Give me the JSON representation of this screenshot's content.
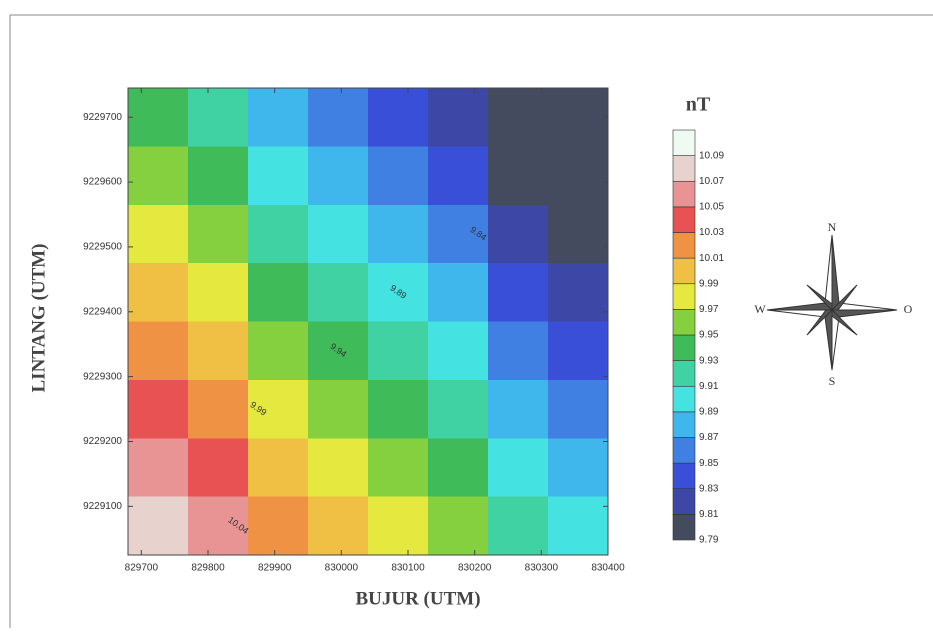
{
  "chart_data": {
    "type": "contour",
    "x_label": "BUJUR (UTM)",
    "y_label": "LINTANG (UTM)",
    "colorbar_title": "nT",
    "xlim": [
      829680,
      830400
    ],
    "ylim": [
      9229025,
      9229745
    ],
    "xticks": [
      829700,
      829800,
      829900,
      830000,
      830100,
      830200,
      830300,
      830400
    ],
    "yticks": [
      9229100,
      9229200,
      9229300,
      9229400,
      9229500,
      9229600,
      9229700
    ],
    "x": [
      829725,
      829815,
      829905,
      829995,
      830085,
      830175,
      830265,
      830355
    ],
    "y": [
      9229700,
      9229610,
      9229520,
      9229430,
      9229340,
      9229250,
      9229160,
      9229070
    ],
    "z": [
      [
        9.93,
        9.91,
        9.88,
        9.86,
        9.83,
        9.81,
        9.8,
        9.8
      ],
      [
        9.95,
        9.93,
        9.9,
        9.88,
        9.85,
        9.83,
        9.8,
        9.79
      ],
      [
        9.97,
        9.95,
        9.92,
        9.9,
        9.87,
        9.85,
        9.82,
        9.8
      ],
      [
        9.99,
        9.97,
        9.94,
        9.92,
        9.89,
        9.87,
        9.84,
        9.82
      ],
      [
        10.01,
        9.99,
        9.96,
        9.94,
        9.91,
        9.89,
        9.86,
        9.84
      ],
      [
        10.03,
        10.01,
        9.98,
        9.96,
        9.93,
        9.91,
        9.88,
        9.86
      ],
      [
        10.05,
        10.03,
        10.0,
        9.98,
        9.95,
        9.93,
        9.9,
        9.88
      ],
      [
        10.07,
        10.05,
        10.02,
        10.0,
        9.97,
        9.95,
        9.92,
        9.9
      ]
    ],
    "levels": [
      9.79,
      9.81,
      9.83,
      9.85,
      9.87,
      9.89,
      9.91,
      9.93,
      9.95,
      9.97,
      9.99,
      10.01,
      10.03,
      10.05,
      10.07,
      10.09
    ],
    "colors": [
      "#444b5e",
      "#3d48a6",
      "#3a4fd8",
      "#3f80e2",
      "#3fb6ec",
      "#45e2e2",
      "#40d2a2",
      "#3fbb5a",
      "#85d03f",
      "#e4e83f",
      "#f0c044",
      "#f09244",
      "#e85252",
      "#e89494",
      "#e8d2ce",
      "#eefaf2"
    ],
    "contour_labels": [
      9.84,
      9.89,
      9.94,
      9.99,
      10.04
    ],
    "compass": {
      "north": "N",
      "south": "S",
      "west": "W",
      "east": "O"
    }
  }
}
